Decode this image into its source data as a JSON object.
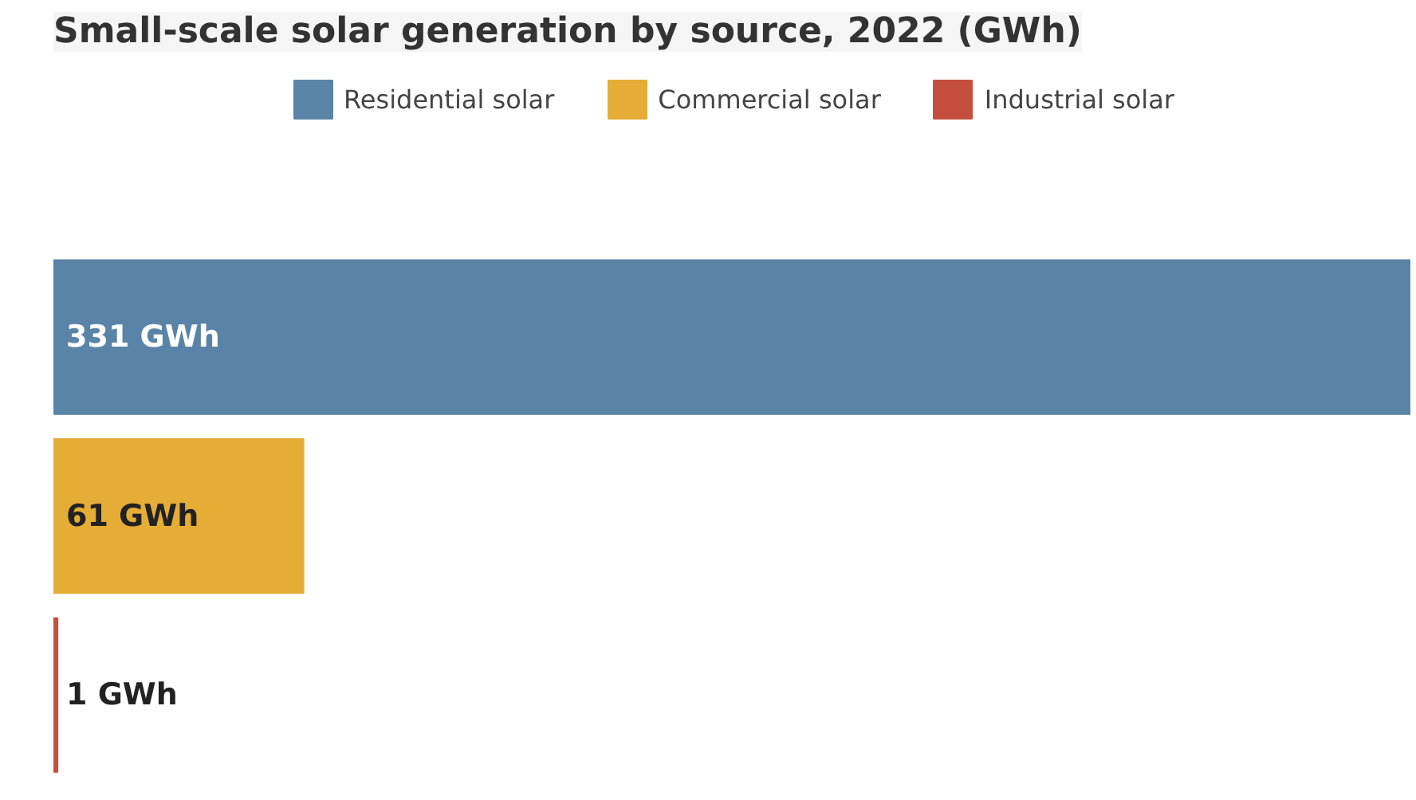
{
  "chart_data": {
    "type": "bar",
    "orientation": "horizontal",
    "stacked": true,
    "title": "Small-scale solar generation by source, 2022 (GWh)",
    "categories": [
      null,
      null,
      null
    ],
    "series": [
      {
        "name": "Residential solar",
        "color": "#5a84a7",
        "values": [
          331,
          null,
          null
        ],
        "value_labels": [
          "331 GWh",
          null,
          null
        ]
      },
      {
        "name": "Commercial solar",
        "color": "#e5ac36",
        "values": [
          null,
          61,
          null
        ],
        "value_labels": [
          null,
          "61 GWh",
          null
        ]
      },
      {
        "name": "Industrial solar",
        "color": "#c44f3e",
        "values": [
          null,
          null,
          1
        ],
        "value_labels": [
          null,
          null,
          "1 GWh"
        ]
      }
    ],
    "xlim": [
      0,
      331
    ],
    "tick_labels": false,
    "legend": "top"
  }
}
